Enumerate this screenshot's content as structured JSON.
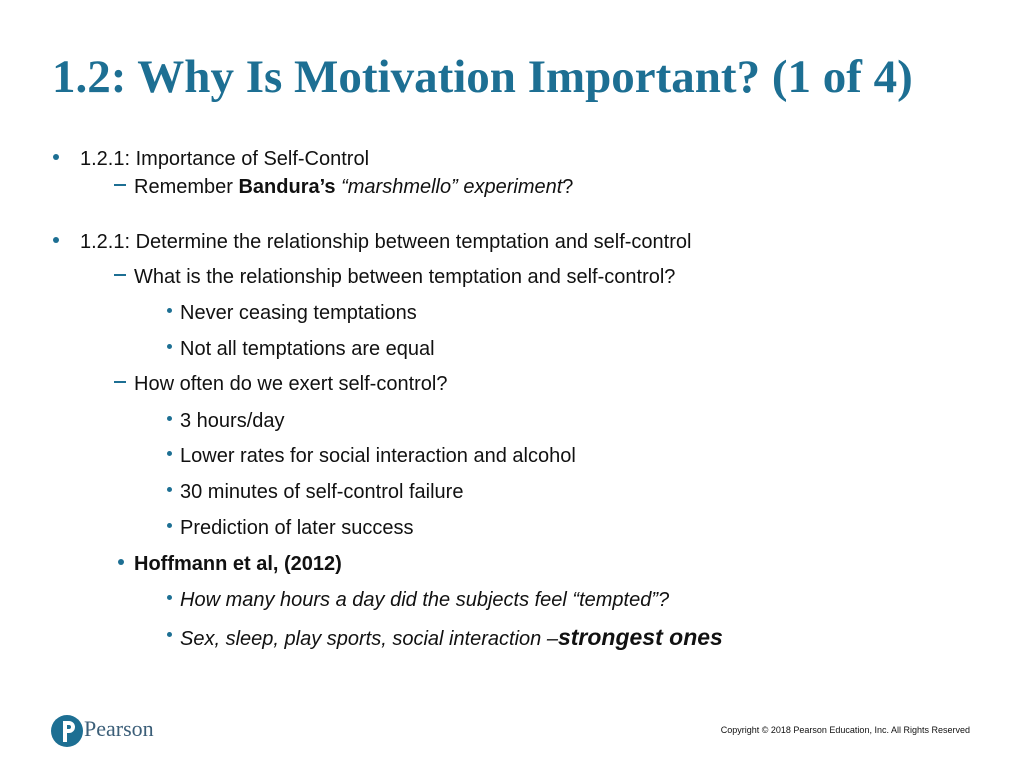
{
  "title": "1.2: Why Is Motivation Important? (1 of 4)",
  "items": [
    {
      "level": 1,
      "marker": "bullet",
      "runs": [
        {
          "text": "1.2.1: Importance of Self-Control"
        }
      ]
    },
    {
      "level": 2,
      "marker": "dash",
      "runs": [
        {
          "text": "Remember "
        },
        {
          "text": "Bandura’s",
          "bold": true
        },
        {
          "text": " “marshmello” experiment",
          "italic": true
        },
        {
          "text": "?"
        }
      ]
    },
    {
      "level": 1,
      "marker": "bullet",
      "runs": [
        {
          "text": "1.2.1: Determine the relationship between temptation and self-control"
        }
      ]
    },
    {
      "level": 2,
      "marker": "dash",
      "runs": [
        {
          "text": "What is the relationship between temptation and self-control?"
        }
      ]
    },
    {
      "level": 3,
      "marker": "bullet",
      "runs": [
        {
          "text": "Never ceasing temptations"
        }
      ]
    },
    {
      "level": 3,
      "marker": "bullet",
      "runs": [
        {
          "text": "Not all temptations are equal"
        }
      ]
    },
    {
      "level": 2,
      "marker": "dash",
      "runs": [
        {
          "text": "How often do we exert self-control?"
        }
      ]
    },
    {
      "level": 3,
      "marker": "bullet",
      "runs": [
        {
          "text": "3 hours/day"
        }
      ]
    },
    {
      "level": 3,
      "marker": "bullet",
      "runs": [
        {
          "text": "Lower rates for social interaction and alcohol"
        }
      ]
    },
    {
      "level": 3,
      "marker": "bullet",
      "runs": [
        {
          "text": "30 minutes of self-control failure"
        }
      ]
    },
    {
      "level": 3,
      "marker": "bullet",
      "runs": [
        {
          "text": "Prediction of later success"
        }
      ]
    },
    {
      "level": 2,
      "marker": "bullet",
      "runs": [
        {
          "text": "Hoffmann et al, (2012)",
          "bold": true
        }
      ]
    },
    {
      "level": 3,
      "marker": "bullet",
      "runs": [
        {
          "text": "How many hours a day did the subjects feel “tempted”?",
          "italic": true
        }
      ]
    },
    {
      "level": 3,
      "marker": "bullet",
      "runs": [
        {
          "text": "Sex, sleep, play sports, social interaction –",
          "italic": true
        },
        {
          "text": "strongest ones",
          "italic": true,
          "bold": true,
          "large": true
        }
      ]
    }
  ],
  "footer": {
    "logo": "Pearson",
    "copyright": "Copyright © 2018 Pearson Education, Inc. All Rights Reserved"
  }
}
